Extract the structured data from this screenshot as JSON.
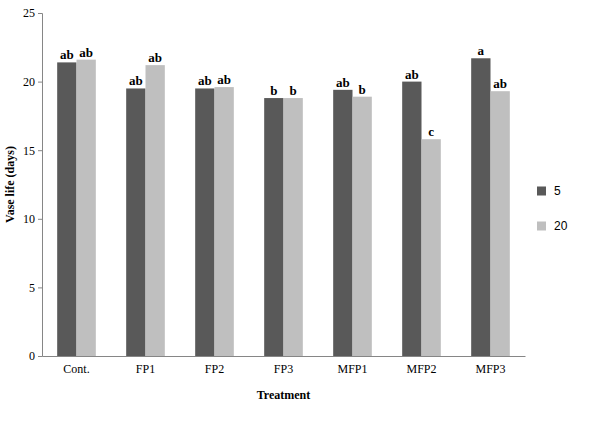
{
  "chart_data": {
    "type": "bar",
    "x_label": "Treatment",
    "y_label": "Vase life (days)",
    "categories": [
      "Cont.",
      "FP1",
      "FP2",
      "FP3",
      "MFP1",
      "MFP2",
      "MFP3"
    ],
    "series": [
      {
        "name": "5",
        "color": "#595959",
        "values": [
          21.4,
          19.5,
          19.5,
          18.8,
          19.4,
          20.0,
          21.7
        ],
        "annotations": [
          "ab",
          "ab",
          "ab",
          "b",
          "ab",
          "ab",
          "a"
        ]
      },
      {
        "name": "20",
        "color": "#bfbfbf",
        "values": [
          21.6,
          21.2,
          19.6,
          18.8,
          18.9,
          15.8,
          19.3
        ],
        "annotations": [
          "ab",
          "ab",
          "ab",
          "b",
          "b",
          "c",
          "ab"
        ]
      }
    ],
    "ylim": [
      0,
      25
    ],
    "yticks": [
      0,
      5,
      10,
      15,
      20,
      25
    ],
    "grid": false,
    "legend": "right"
  }
}
